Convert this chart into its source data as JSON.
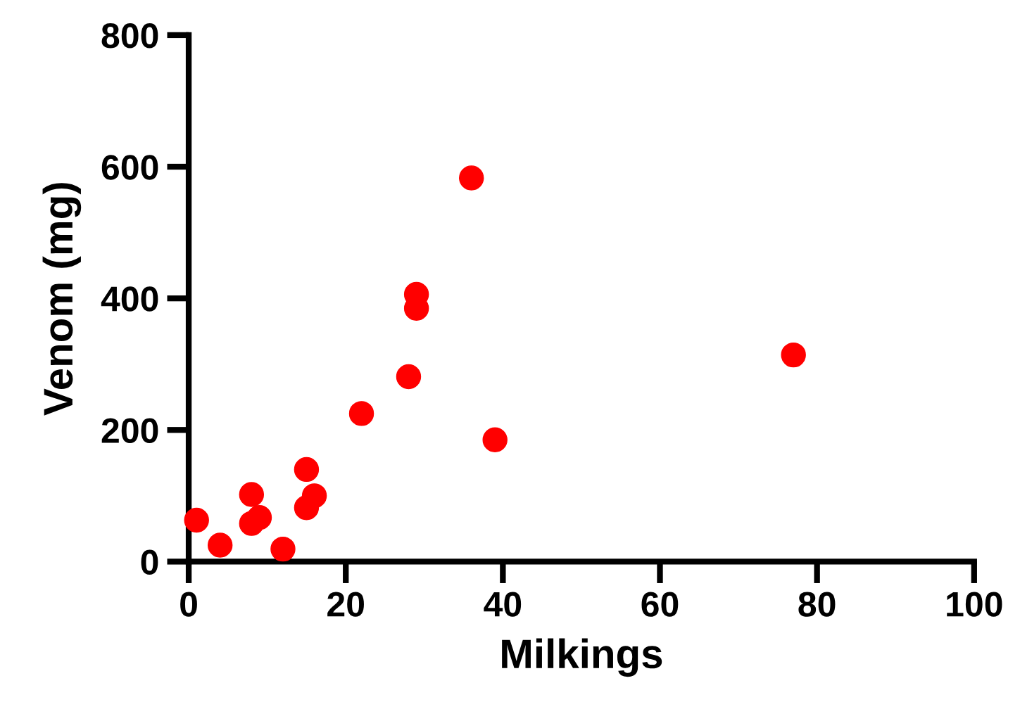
{
  "chart_data": {
    "type": "scatter",
    "xlabel": "Milkings",
    "ylabel": "Venom (mg)",
    "x": [
      1,
      4,
      8,
      8,
      9,
      12,
      15,
      15,
      16,
      22,
      28,
      29,
      29,
      36,
      39,
      77
    ],
    "series": [
      {
        "color": "#ff0000",
        "values": [
          63,
          25,
          102,
          58,
          67,
          19,
          140,
          82,
          100,
          225,
          281,
          406,
          385,
          583,
          185,
          314
        ]
      }
    ],
    "xlim": [
      0,
      100
    ],
    "xticks": [
      0,
      20,
      40,
      60,
      80,
      100
    ],
    "ylim": [
      0,
      800
    ],
    "yticks": [
      0,
      200,
      400,
      600,
      800
    ],
    "grid": false,
    "legend": false,
    "marker": "circle"
  }
}
